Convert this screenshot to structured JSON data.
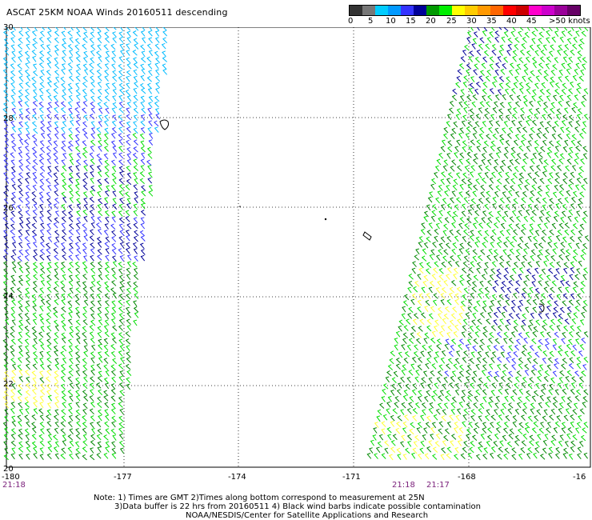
{
  "title": "ASCAT 25KM NOAA Winds 20160511 descending",
  "legend": {
    "colors": [
      "#333333",
      "#777777",
      "#00ccff",
      "#0099ff",
      "#3333ff",
      "#000099",
      "#009900",
      "#00ee00",
      "#ffff00",
      "#ffcc00",
      "#ff9900",
      "#ff6600",
      "#ff0000",
      "#cc0000",
      "#ff00cc",
      "#cc00cc",
      "#990099",
      "#660066"
    ],
    "labels": [
      "0",
      "5",
      "10",
      "15",
      "20",
      "25",
      "30",
      "35",
      "40",
      "45",
      ">50 knots"
    ]
  },
  "axes": {
    "y_labels": [
      "30",
      "28",
      "26",
      "24",
      "22",
      "20"
    ],
    "x_labels": [
      "-180",
      "-177",
      "-174",
      "-171",
      "-168",
      "-16"
    ]
  },
  "pass_times": {
    "left": "21:18",
    "center_a": "21:18",
    "center_b": "21:17"
  },
  "footer": {
    "line1": "Note: 1) Times are GMT 2)Times along bottom correspond to measurement at 25N",
    "line2": "3)Data buffer is 22 hrs from 20160511 4) Black wind barbs indicate possible contamination",
    "line3": "NOAA/NESDIS/Center for Satellite Applications and Research"
  },
  "barb_colors": {
    "lightblue": "#00bbff",
    "blue": "#3333ff",
    "navy": "#000099",
    "green": "#00dd00",
    "darkgreen": "#008800",
    "yellow": "#ffff33",
    "black": "#000000"
  }
}
